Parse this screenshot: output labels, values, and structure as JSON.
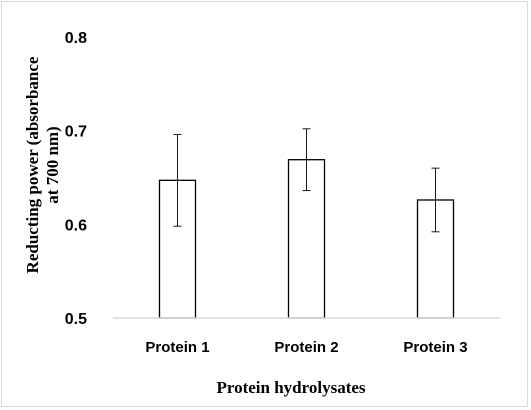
{
  "chart_data": {
    "type": "bar",
    "title": "",
    "xlabel": "Protein hydrolysates",
    "ylabel_lines": [
      "Reducting power (absorbance",
      "at 700 nm)"
    ],
    "categories": [
      "Protein 1",
      "Protein 2",
      "Protein 3"
    ],
    "values": [
      0.647,
      0.669,
      0.626
    ],
    "error": [
      0.049,
      0.033,
      0.034
    ],
    "ylim": [
      0.5,
      0.8
    ],
    "yticks": [
      "0.5",
      "0.6",
      "0.7",
      "0.8"
    ],
    "grid": false,
    "legend": "none",
    "colors": {
      "bar_fill": "#ffffff",
      "bar_stroke": "#000000",
      "axis": "#d9d9d9",
      "error": "#000000"
    }
  }
}
